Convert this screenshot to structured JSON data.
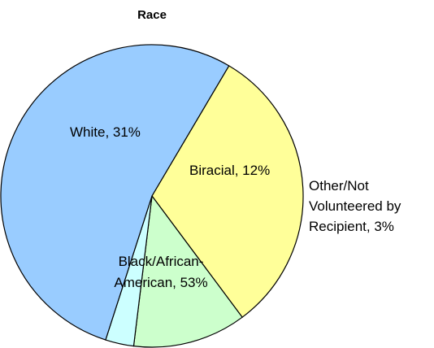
{
  "chart_data": {
    "type": "pie",
    "title": "Race",
    "slices": [
      {
        "name": "White",
        "value": 31,
        "label": "White, 31%",
        "color": "#ffff99"
      },
      {
        "name": "Biracial",
        "value": 12,
        "label": "Biracial, 12%",
        "color": "#ccffcc"
      },
      {
        "name": "Other/Not Volunteered by Recipient",
        "value": 3,
        "label": "Other/Not Volunteered by Recipient, 3%",
        "color": "#ccffff"
      },
      {
        "name": "Black/African-American",
        "value": 53,
        "label": "Black/African-American, 53%",
        "color": "#99ccff"
      }
    ],
    "labels": {
      "white": "White, 31%",
      "biracial": "Biracial, 12%",
      "other_line1": "Other/Not",
      "other_line2": "Volunteered by",
      "other_line3": "Recipient, 3%",
      "black_line1": "Black/African-",
      "black_line2": "American, 53%"
    },
    "legend": "none",
    "grid": false
  }
}
